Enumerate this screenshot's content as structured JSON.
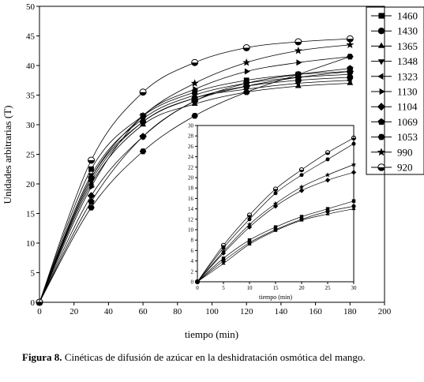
{
  "chart_data": [
    {
      "type": "line",
      "xlabel": "tiempo (min)",
      "ylabel": "Unidades arbitrarias (T)",
      "xlim": [
        0,
        200
      ],
      "ylim": [
        0,
        50
      ],
      "xticks": [
        0,
        20,
        40,
        60,
        80,
        100,
        120,
        140,
        160,
        180,
        200
      ],
      "yticks": [
        0,
        5,
        10,
        15,
        20,
        25,
        30,
        35,
        40,
        45,
        50
      ],
      "grid": false,
      "legend_position": "right",
      "x": [
        0,
        30,
        60,
        90,
        120,
        150,
        180
      ],
      "series": [
        {
          "name": "1460",
          "marker": "square",
          "values": [
            0,
            22.5,
            31.5,
            35.5,
            37.5,
            38.5,
            39.0
          ]
        },
        {
          "name": "1430",
          "marker": "circle",
          "values": [
            0,
            21.0,
            30.5,
            34.5,
            36.5,
            37.5,
            38.0
          ]
        },
        {
          "name": "1365",
          "marker": "triangle-up",
          "values": [
            0,
            20.0,
            30.0,
            33.5,
            35.5,
            36.5,
            37.0
          ]
        },
        {
          "name": "1348",
          "marker": "triangle-down",
          "values": [
            0,
            21.5,
            31.0,
            35.0,
            37.0,
            38.0,
            38.5
          ]
        },
        {
          "name": "1323",
          "marker": "triangle-left",
          "values": [
            0,
            20.5,
            30.5,
            34.5,
            36.0,
            37.0,
            37.5
          ]
        },
        {
          "name": "1130",
          "marker": "triangle-right",
          "values": [
            0,
            19.5,
            31.5,
            36.0,
            39.0,
            40.5,
            41.5
          ]
        },
        {
          "name": "1104",
          "marker": "diamond",
          "values": [
            0,
            18.0,
            28.0,
            34.0,
            36.5,
            38.0,
            39.0
          ]
        },
        {
          "name": "1069",
          "marker": "pentagon",
          "values": [
            0,
            17.0,
            28.0,
            34.0,
            37.0,
            38.5,
            39.5
          ]
        },
        {
          "name": "1053",
          "marker": "hexagon",
          "values": [
            0,
            16.0,
            25.5,
            31.5,
            35.5,
            38.5,
            41.5
          ]
        },
        {
          "name": "990",
          "marker": "star",
          "values": [
            0,
            21.0,
            31.5,
            37.0,
            40.5,
            42.5,
            43.5
          ]
        },
        {
          "name": "920",
          "marker": "circle-half",
          "values": [
            0,
            24.0,
            35.5,
            40.5,
            43.0,
            44.0,
            44.5
          ]
        }
      ]
    },
    {
      "type": "line",
      "xlabel": "tiempo (min)",
      "ylabel": "",
      "xlim": [
        0,
        30
      ],
      "ylim": [
        0,
        30
      ],
      "xticks": [
        0,
        5,
        10,
        15,
        20,
        25,
        30
      ],
      "yticks": [
        0,
        2,
        4,
        6,
        8,
        10,
        12,
        14,
        16,
        18,
        20,
        22,
        24,
        26,
        28,
        30
      ],
      "grid": false,
      "x": [
        0,
        5,
        10,
        15,
        20,
        25,
        30
      ],
      "series": [
        {
          "marker": "circle-half",
          "values": [
            0,
            7.0,
            12.8,
            17.8,
            21.5,
            24.8,
            27.6
          ]
        },
        {
          "marker": "hexagon",
          "values": [
            0,
            6.5,
            12.0,
            17.0,
            20.5,
            23.5,
            26.5
          ]
        },
        {
          "marker": "star",
          "values": [
            0,
            5.8,
            11.0,
            15.0,
            18.2,
            20.5,
            22.5
          ]
        },
        {
          "marker": "diamond",
          "values": [
            0,
            5.5,
            10.5,
            14.5,
            17.5,
            19.5,
            21.0
          ]
        },
        {
          "marker": "square",
          "values": [
            0,
            4.5,
            8.0,
            10.5,
            12.5,
            14.0,
            15.5
          ]
        },
        {
          "marker": "circle",
          "values": [
            0,
            4.0,
            7.5,
            10.0,
            12.0,
            13.5,
            14.5
          ]
        },
        {
          "marker": "triangle-up",
          "values": [
            0,
            3.5,
            7.2,
            9.8,
            11.8,
            13.0,
            14.0
          ]
        }
      ]
    }
  ],
  "caption": {
    "label": "Figura 8.",
    "text": " Cinéticas de difusión de azúcar en la deshidratación osmótica del mango."
  }
}
